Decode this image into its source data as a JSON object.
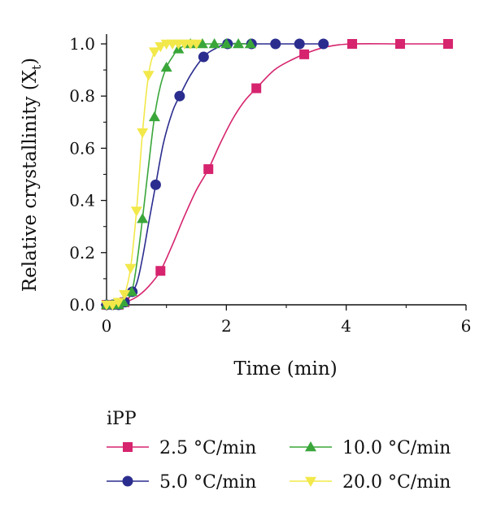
{
  "chart_data": {
    "type": "line",
    "xlabel": "Time (min)",
    "ylabel_main": "Relative crystallinity (X",
    "ylabel_sub": "t",
    "ylabel_close": ")",
    "xlim": [
      0,
      6
    ],
    "ylim": [
      0,
      1.0
    ],
    "xticks": [
      0,
      2,
      4,
      6
    ],
    "xtick_labels": [
      "0",
      "2",
      "4",
      "6"
    ],
    "yticks": [
      0,
      0.2,
      0.4,
      0.6,
      0.8,
      1.0
    ],
    "ytick_labels": [
      "0.0",
      "0.2",
      "0.4",
      "0.6",
      "0.8",
      "1.0"
    ],
    "grid": false,
    "legend_title": "iPP",
    "legend_position": "bottom",
    "series": [
      {
        "name": "2.5 °C/min",
        "color": "#d6246e",
        "marker": "square",
        "x": [
          0.0,
          0.1,
          0.2,
          0.3,
          0.9,
          1.7,
          2.5,
          3.3,
          4.1,
          4.9,
          5.7
        ],
        "y": [
          0.0,
          0.0,
          0.0,
          0.01,
          0.13,
          0.52,
          0.83,
          0.96,
          1.0,
          1.0,
          1.0
        ],
        "curve_x": [
          0.0,
          0.3,
          0.5,
          0.7,
          0.9,
          1.1,
          1.3,
          1.5,
          1.7,
          1.9,
          2.1,
          2.3,
          2.5,
          2.8,
          3.1,
          3.4,
          3.7,
          4.1,
          4.9,
          5.7
        ],
        "curve_y": [
          0.0,
          0.01,
          0.03,
          0.07,
          0.13,
          0.23,
          0.34,
          0.44,
          0.52,
          0.62,
          0.71,
          0.78,
          0.83,
          0.9,
          0.94,
          0.97,
          0.99,
          1.0,
          1.0,
          1.0
        ]
      },
      {
        "name": "5.0 °C/min",
        "color": "#2b2d8e",
        "marker": "circle",
        "x": [
          0.0,
          0.1,
          0.2,
          0.3,
          0.43,
          0.82,
          1.22,
          1.62,
          2.02,
          2.42,
          2.82,
          3.22,
          3.62
        ],
        "y": [
          0.0,
          0.0,
          0.0,
          0.01,
          0.05,
          0.46,
          0.8,
          0.95,
          1.0,
          1.0,
          1.0,
          1.0,
          1.0
        ],
        "curve_x": [
          0.0,
          0.2,
          0.35,
          0.5,
          0.6,
          0.7,
          0.82,
          0.95,
          1.1,
          1.22,
          1.4,
          1.62,
          1.8,
          2.02,
          2.42,
          2.82,
          3.22,
          3.62
        ],
        "curve_y": [
          0.0,
          0.0,
          0.02,
          0.08,
          0.18,
          0.31,
          0.46,
          0.62,
          0.74,
          0.8,
          0.88,
          0.95,
          0.98,
          1.0,
          1.0,
          1.0,
          1.0,
          1.0
        ]
      },
      {
        "name": "10.0 °C/min",
        "color": "#3aa63a",
        "marker": "triangle-up",
        "x": [
          0.0,
          0.1,
          0.2,
          0.28,
          0.42,
          0.6,
          0.8,
          1.0,
          1.2,
          1.4,
          1.6,
          1.8,
          2.0,
          2.2,
          2.4
        ],
        "y": [
          0.0,
          0.0,
          0.0,
          0.01,
          0.05,
          0.33,
          0.72,
          0.91,
          0.98,
          1.0,
          1.0,
          1.0,
          1.0,
          1.0,
          1.0
        ],
        "curve_x": [
          0.0,
          0.2,
          0.3,
          0.42,
          0.5,
          0.6,
          0.7,
          0.8,
          0.9,
          1.0,
          1.1,
          1.2,
          1.4,
          1.6,
          2.0,
          2.4
        ],
        "curve_y": [
          0.0,
          0.0,
          0.01,
          0.05,
          0.15,
          0.33,
          0.53,
          0.72,
          0.84,
          0.91,
          0.95,
          0.98,
          1.0,
          1.0,
          1.0,
          1.0
        ]
      },
      {
        "name": "20.0 °C/min",
        "color": "#f2e84a",
        "marker": "triangle-down",
        "x": [
          0.0,
          0.1,
          0.2,
          0.3,
          0.4,
          0.5,
          0.6,
          0.7,
          0.8,
          0.9,
          1.0,
          1.1,
          1.2,
          1.3,
          1.4,
          1.5
        ],
        "y": [
          0.0,
          0.0,
          0.01,
          0.04,
          0.14,
          0.36,
          0.66,
          0.88,
          0.97,
          0.99,
          1.0,
          1.0,
          1.0,
          1.0,
          1.0,
          1.0
        ],
        "curve_x": [
          0.0,
          0.1,
          0.2,
          0.3,
          0.4,
          0.5,
          0.6,
          0.7,
          0.8,
          0.9,
          1.0,
          1.1,
          1.2,
          1.5
        ],
        "curve_y": [
          0.0,
          0.0,
          0.01,
          0.04,
          0.14,
          0.36,
          0.66,
          0.88,
          0.97,
          0.99,
          1.0,
          1.0,
          1.0,
          1.0
        ]
      }
    ]
  }
}
